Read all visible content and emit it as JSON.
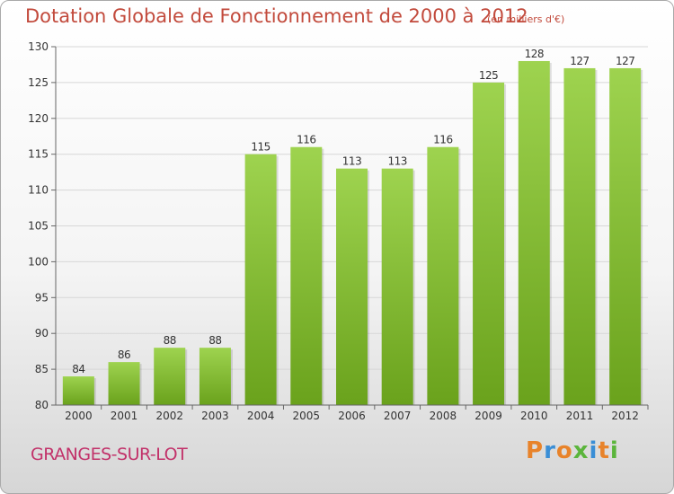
{
  "header": {
    "title": "Dotation Globale de Fonctionnement de 2000 à 2012",
    "unit": "(en milliers d'€)"
  },
  "footer": {
    "commune": "GRANGES-SUR-LOT",
    "brand_letters": [
      "P",
      "r",
      "o",
      "x",
      "i",
      "t",
      "i"
    ],
    "brand_colors": [
      "#e8832a",
      "#3a8ed6",
      "#e8832a",
      "#5bb53c",
      "#3a8ed6",
      "#e8832a",
      "#5bb53c"
    ]
  },
  "colors": {
    "bar_light": "#9ed34f",
    "bar_dark": "#6aa21c",
    "title": "#c24a3c",
    "commune": "#c2326a",
    "grid": "#d7d7d7",
    "axis_text": "#333333"
  },
  "chart_data": {
    "type": "bar",
    "title": "Dotation Globale de Fonctionnement de 2000 à 2012",
    "subtitle": "(en milliers d'€)",
    "xlabel": "",
    "ylabel": "",
    "categories": [
      "2000",
      "2001",
      "2002",
      "2003",
      "2004",
      "2005",
      "2006",
      "2007",
      "2008",
      "2009",
      "2010",
      "2011",
      "2012"
    ],
    "values": [
      84,
      86,
      88,
      88,
      115,
      116,
      113,
      113,
      116,
      125,
      128,
      127,
      127
    ],
    "ylim": [
      80,
      130
    ],
    "yticks": [
      80,
      85,
      90,
      95,
      100,
      105,
      110,
      115,
      120,
      125,
      130
    ],
    "grid": true,
    "legend": "none",
    "data_labels": true
  }
}
